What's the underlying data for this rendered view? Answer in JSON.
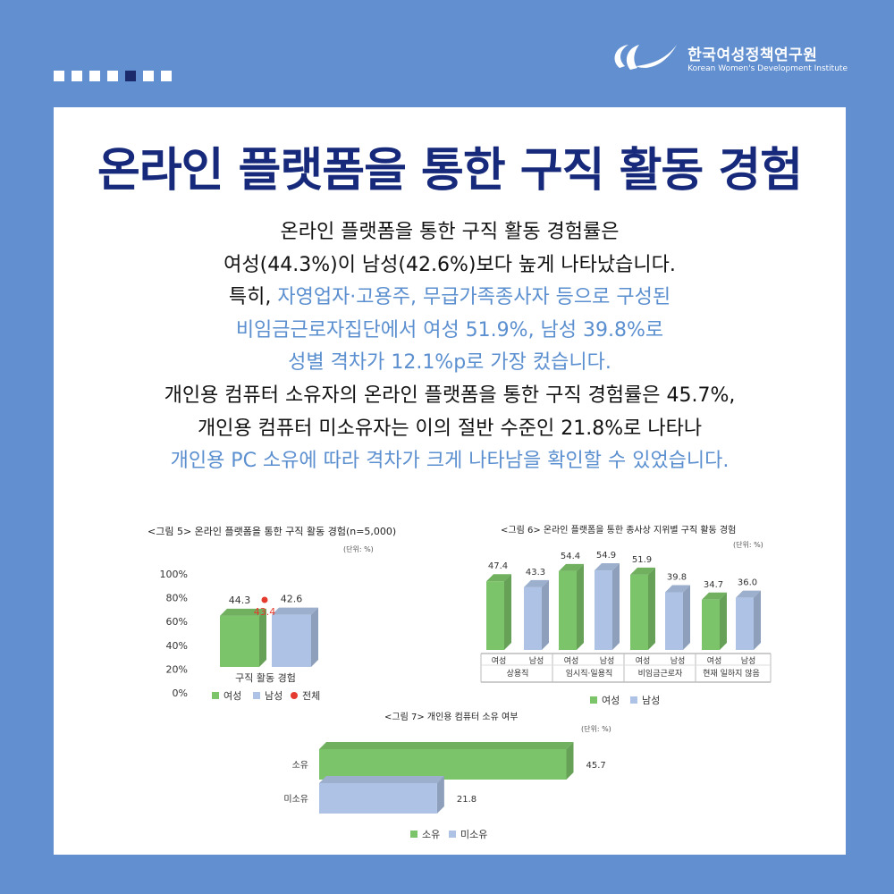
{
  "header": {
    "logo_ko": "한국여성정책연구원",
    "logo_en": "Korean Women's Development Institute",
    "dots_total": 7,
    "dots_active_index": 4
  },
  "title": "온라인 플랫폼을 통한 구직 활동 경험",
  "body": {
    "l1": "온라인 플랫폼을 통한 구직 활동 경험률은",
    "l2": "여성(44.3%)이 남성(42.6%)보다 높게 나타났습니다.",
    "l3a": "특히, ",
    "l3b": "자영업자·고용주, 무급가족종사자 등으로 구성된",
    "l4": "비임금근로자집단에서 여성 51.9%, 남성 39.8%로",
    "l5": "성별 격차가 12.1%p로 가장 컸습니다.",
    "l6": "개인용 컴퓨터 소유자의 온라인 플랫폼을 통한 구직 경험률은 45.7%,",
    "l7": "개인용 컴퓨터 미소유자는 이의 절반 수준인 21.8%로 나타나",
    "l8": "개인용 PC 소유에 따라 격차가 크게 나타남을 확인할 수 있었습니다."
  },
  "colors": {
    "female": "#7cc46a",
    "male": "#adc2e4",
    "total": "#e53b2e",
    "navy": "#16297a",
    "accent": "#5b8fcf"
  },
  "chart_data": [
    {
      "type": "bar",
      "title": "<그림 5> 온라인 플랫폼을 통한 구직 활동 경험(n=5,000)",
      "unit": "(단위: %)",
      "categories": [
        "구직 활동 경험"
      ],
      "series": [
        {
          "name": "여성",
          "values": [
            44.3
          ]
        },
        {
          "name": "남성",
          "values": [
            42.6
          ]
        },
        {
          "name": "전체",
          "values": [
            43.4
          ]
        }
      ],
      "ylim": [
        0,
        100
      ],
      "yticks": [
        "0%",
        "20%",
        "40%",
        "60%",
        "80%",
        "100%"
      ],
      "legend": "bottom"
    },
    {
      "type": "bar",
      "title": "<그림 6> 온라인 플랫폼을 통한 종사상 지위별 구직 활동 경험",
      "unit": "(단위: %)",
      "categories": [
        "상용직",
        "임시직·일용직",
        "비임금근로자",
        "현재 일하지 않음"
      ],
      "sub_labels": [
        "여성",
        "남성"
      ],
      "series": [
        {
          "name": "여성",
          "values": [
            47.4,
            54.4,
            51.9,
            34.7
          ]
        },
        {
          "name": "남성",
          "values": [
            43.3,
            54.9,
            39.8,
            36.0
          ]
        }
      ],
      "legend": "bottom"
    },
    {
      "type": "bar",
      "orientation": "horizontal",
      "title": "<그림 7> 개인용 컴퓨터 소유 여부",
      "unit": "(단위: %)",
      "categories": [
        "소유",
        "미소유"
      ],
      "values": [
        45.7,
        21.8
      ],
      "legend_labels": [
        "소유",
        "미소유"
      ],
      "legend": "bottom"
    }
  ]
}
